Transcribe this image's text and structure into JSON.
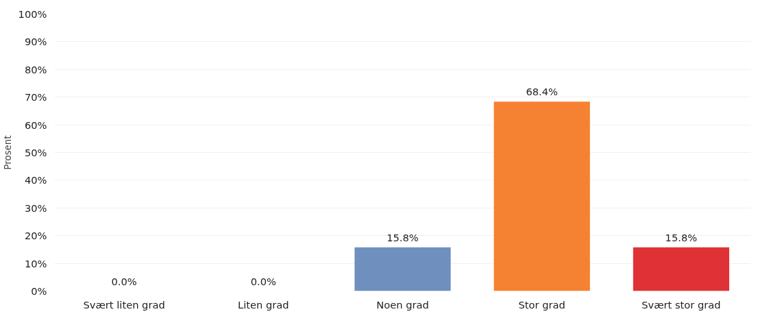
{
  "chart_data": {
    "type": "bar",
    "ylabel": "Prosent",
    "categories": [
      "Svært liten grad",
      "Liten grad",
      "Noen grad",
      "Stor grad",
      "Svært stor grad"
    ],
    "values": [
      0,
      0,
      15.8,
      68.4,
      15.8
    ],
    "colors": [
      "#6f8fbf",
      "#6f8fbf",
      "#6f8fbf",
      "#f58232",
      "#e03236"
    ],
    "value_labels": [
      "0.0%",
      "0.0%",
      "15.8%",
      "68.4%",
      "15.8%"
    ],
    "ylim": [
      0,
      100
    ],
    "yticks": [
      {
        "value": 0,
        "label": "0%"
      },
      {
        "value": 10,
        "label": "10%"
      },
      {
        "value": 20,
        "label": "20%"
      },
      {
        "value": 30,
        "label": "30%"
      },
      {
        "value": 40,
        "label": "40%"
      },
      {
        "value": 50,
        "label": "50%"
      },
      {
        "value": 60,
        "label": "60%"
      },
      {
        "value": 70,
        "label": "70%"
      },
      {
        "value": 80,
        "label": "80%"
      },
      {
        "value": 90,
        "label": "90%"
      },
      {
        "value": 100,
        "label": "100%"
      }
    ],
    "grid": "y"
  }
}
